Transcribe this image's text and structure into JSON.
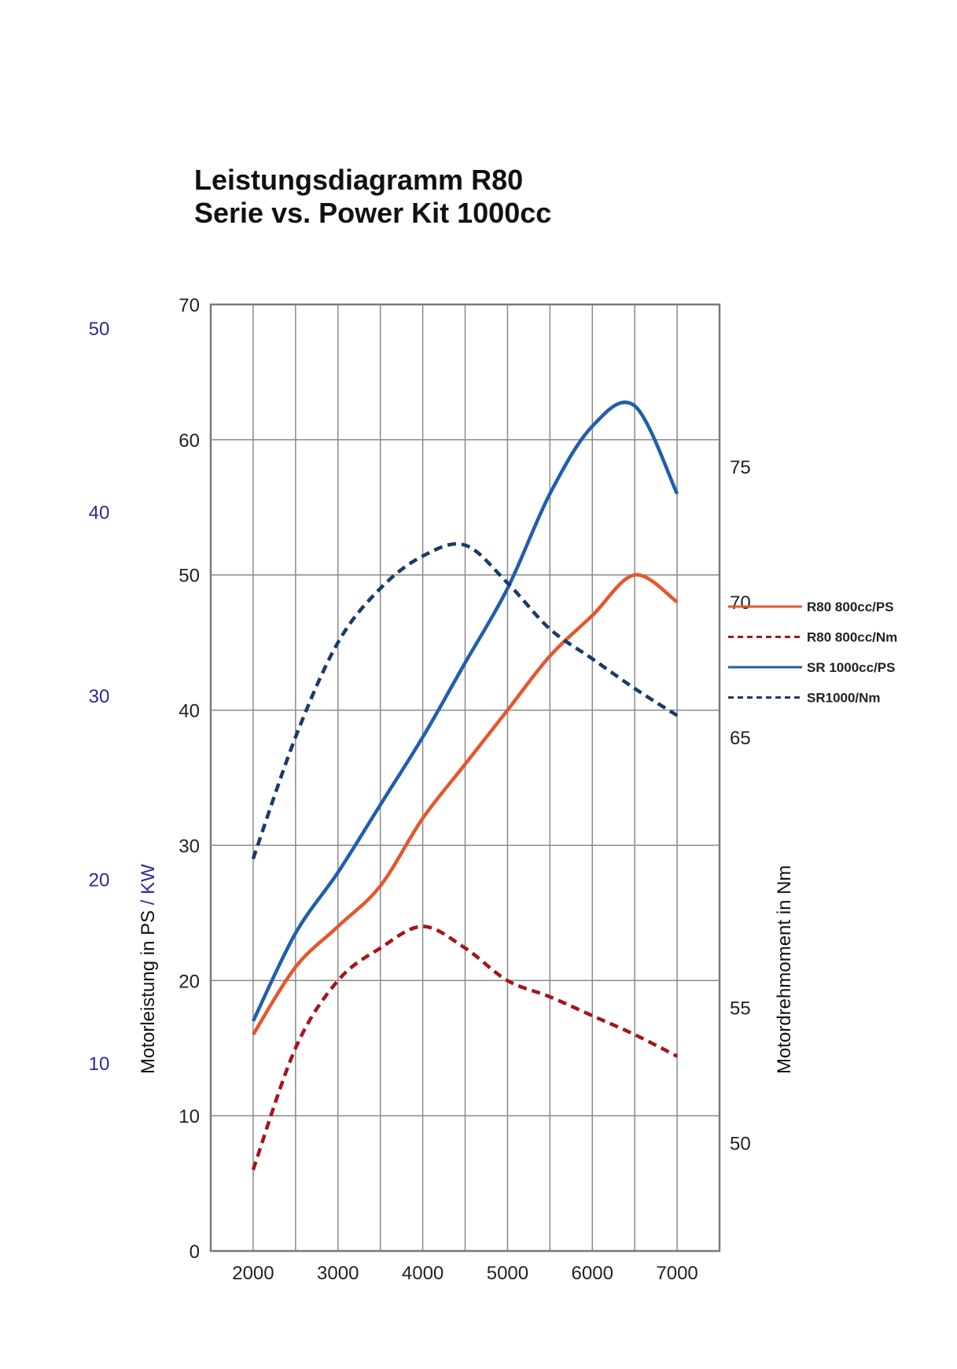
{
  "chart_data": {
    "type": "line",
    "title": [
      "Leistungsdiagramm R80",
      "Serie vs. Power Kit 1000cc"
    ],
    "x": [
      2000,
      2500,
      3000,
      3500,
      4000,
      4500,
      5000,
      5500,
      6000,
      6500,
      7000
    ],
    "x_ticks": [
      2000,
      3000,
      4000,
      5000,
      6000,
      7000
    ],
    "xlim": [
      1500,
      7500
    ],
    "y_left": {
      "ylim": [
        0,
        70
      ],
      "ticks": [
        0,
        10,
        20,
        30,
        40,
        50,
        60,
        70
      ],
      "label_parts": [
        "Motorleistung in PS",
        " / KW"
      ]
    },
    "y_kw": {
      "ticks": [
        10,
        20,
        30,
        40,
        50
      ],
      "color": "#2b2b9a"
    },
    "y_right": {
      "ylim": [
        46,
        81
      ],
      "ticks": [
        50,
        55,
        65,
        70,
        75
      ],
      "label": "Motordrehmoment in Nm"
    },
    "series": [
      {
        "name": "R80 800cc/PS",
        "axis": "left",
        "style": "solid",
        "color": "#e4572e",
        "values": [
          16,
          21,
          24,
          27,
          32,
          36,
          40,
          44,
          47,
          50,
          48
        ]
      },
      {
        "name": "R80 800cc/Nm",
        "axis": "right",
        "style": "dashed",
        "color": "#a4161a",
        "values": [
          49,
          53.5,
          56,
          57.2,
          58,
          57.2,
          56,
          55.4,
          54.7,
          54,
          53.2
        ]
      },
      {
        "name": "SR 1000cc/PS",
        "axis": "left",
        "style": "solid",
        "color": "#1f5fad",
        "values": [
          17,
          23.5,
          28,
          33,
          38,
          43.5,
          49,
          56,
          61,
          62.5,
          56
        ]
      },
      {
        "name": "SR1000/Nm",
        "axis": "right",
        "style": "dashed",
        "color": "#1b3a6b",
        "values": [
          60.5,
          65,
          68.5,
          70.5,
          71.7,
          72.1,
          70.7,
          69,
          67.9,
          66.8,
          65.8
        ]
      }
    ],
    "grid": true,
    "legend_position": "right"
  }
}
